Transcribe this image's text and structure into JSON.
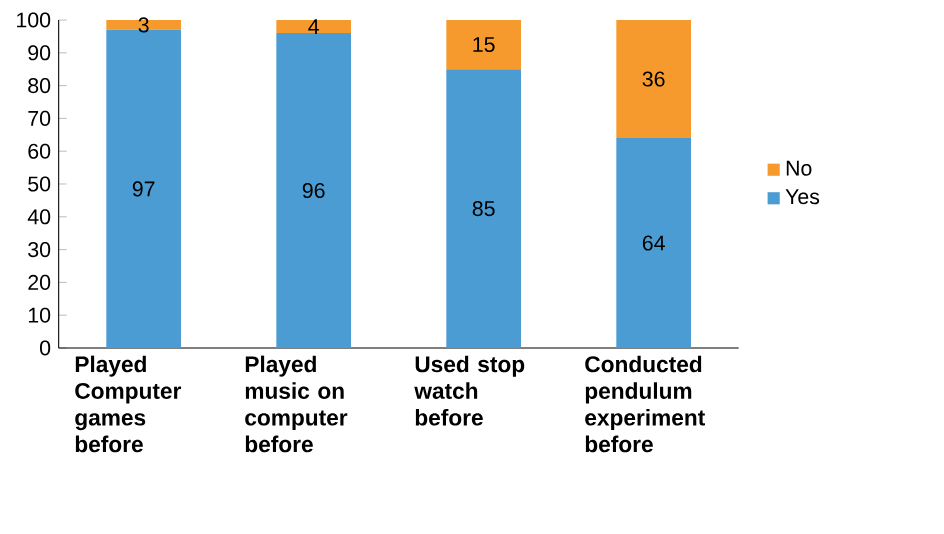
{
  "chart_data": {
    "type": "bar",
    "stacked": true,
    "categories": [
      "Played Computer games before",
      "Played music on computer before",
      "Used stop watch before",
      "Conducted pendulum experiment before"
    ],
    "series": [
      {
        "name": "Yes",
        "color": "#4b9cd3",
        "values": [
          97,
          96,
          85,
          64
        ]
      },
      {
        "name": "No",
        "color": "#f79a2e",
        "values": [
          3,
          4,
          15,
          36
        ]
      }
    ],
    "ylim": [
      0,
      100
    ],
    "yticks": [
      0,
      10,
      20,
      30,
      40,
      50,
      60,
      70,
      80,
      90,
      100
    ],
    "data_labels": true,
    "legend": "right"
  }
}
